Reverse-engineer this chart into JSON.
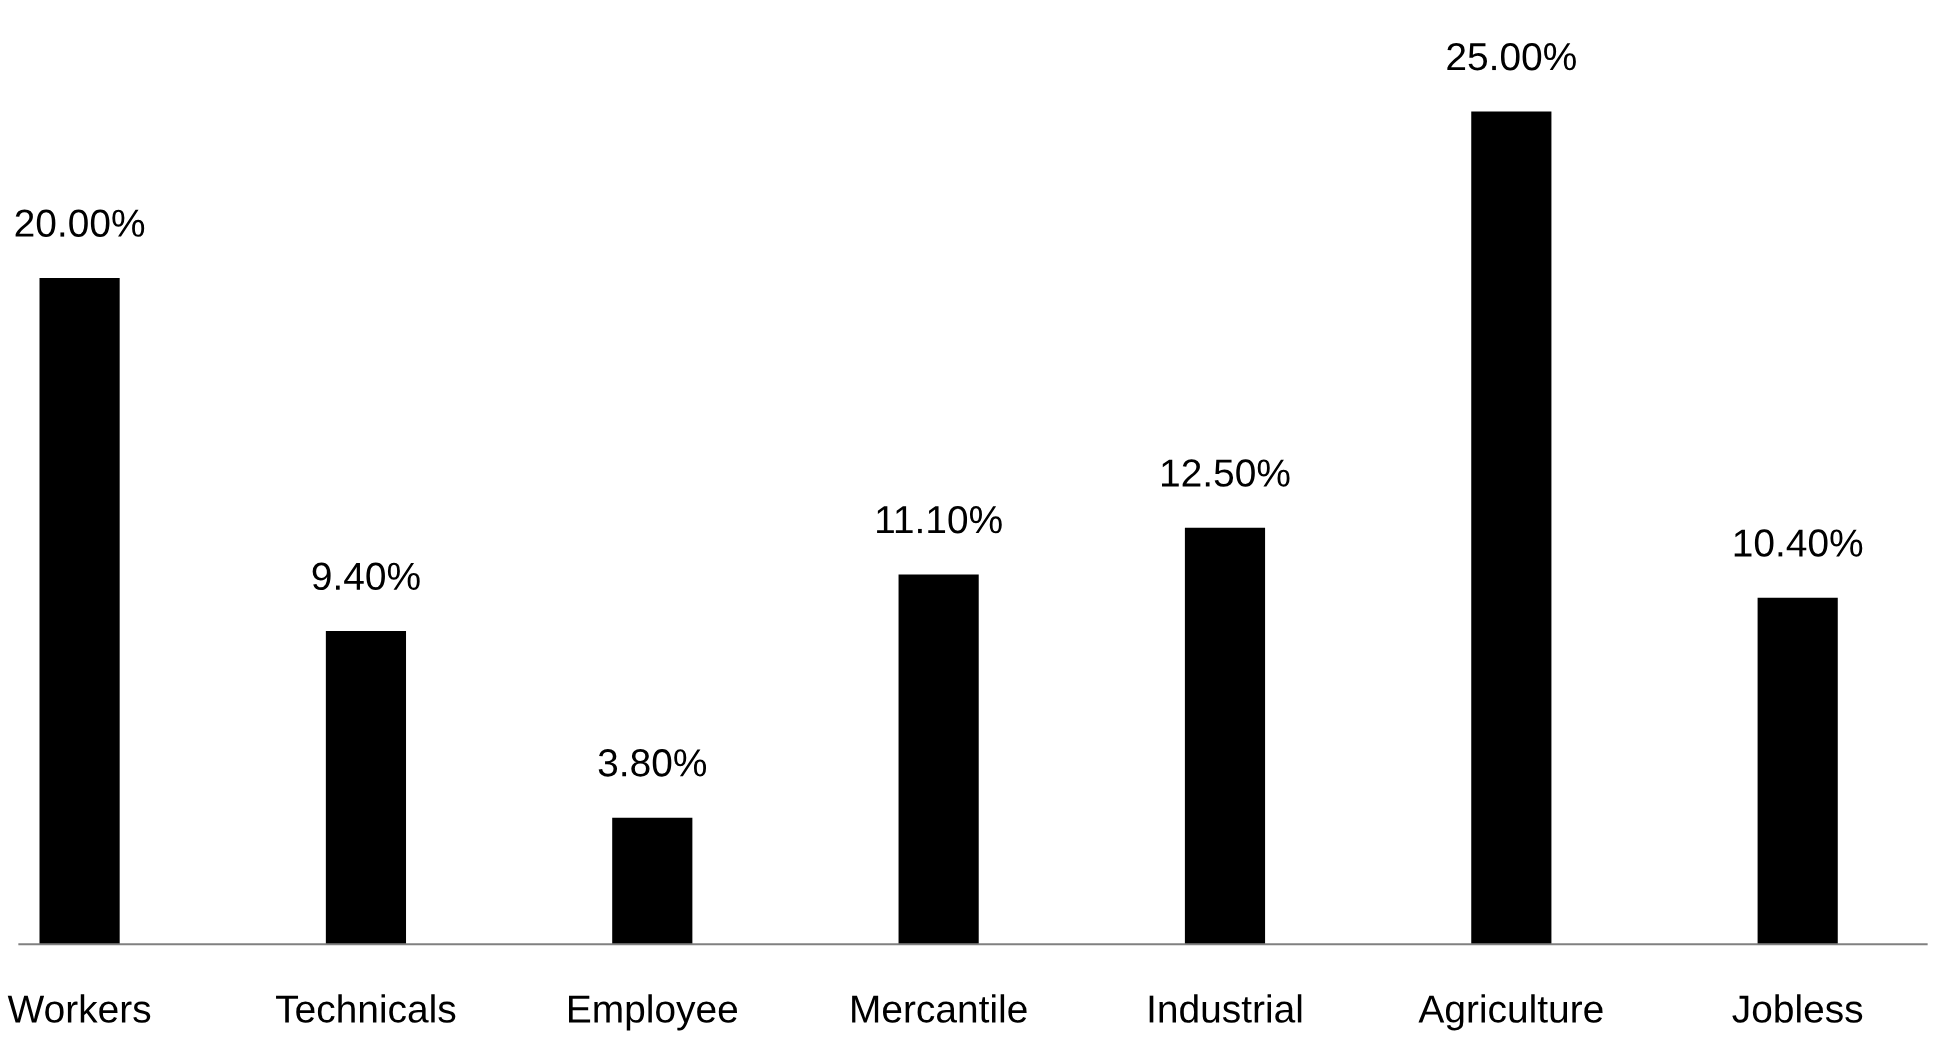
{
  "chart_data": {
    "type": "bar",
    "categories": [
      "Workers",
      "Technicals",
      "Employee",
      "Mercantile",
      "Industrial",
      "Agriculture",
      "Jobless"
    ],
    "values": [
      20.0,
      9.4,
      3.8,
      11.1,
      12.5,
      25.0,
      10.4
    ],
    "value_labels": [
      "20.00%",
      "9.40%",
      "3.80%",
      "11.10%",
      "12.50%",
      "25.00%",
      "10.40%"
    ],
    "color": "#000000",
    "tick_labels": "x",
    "grid": false,
    "legend": false
  }
}
